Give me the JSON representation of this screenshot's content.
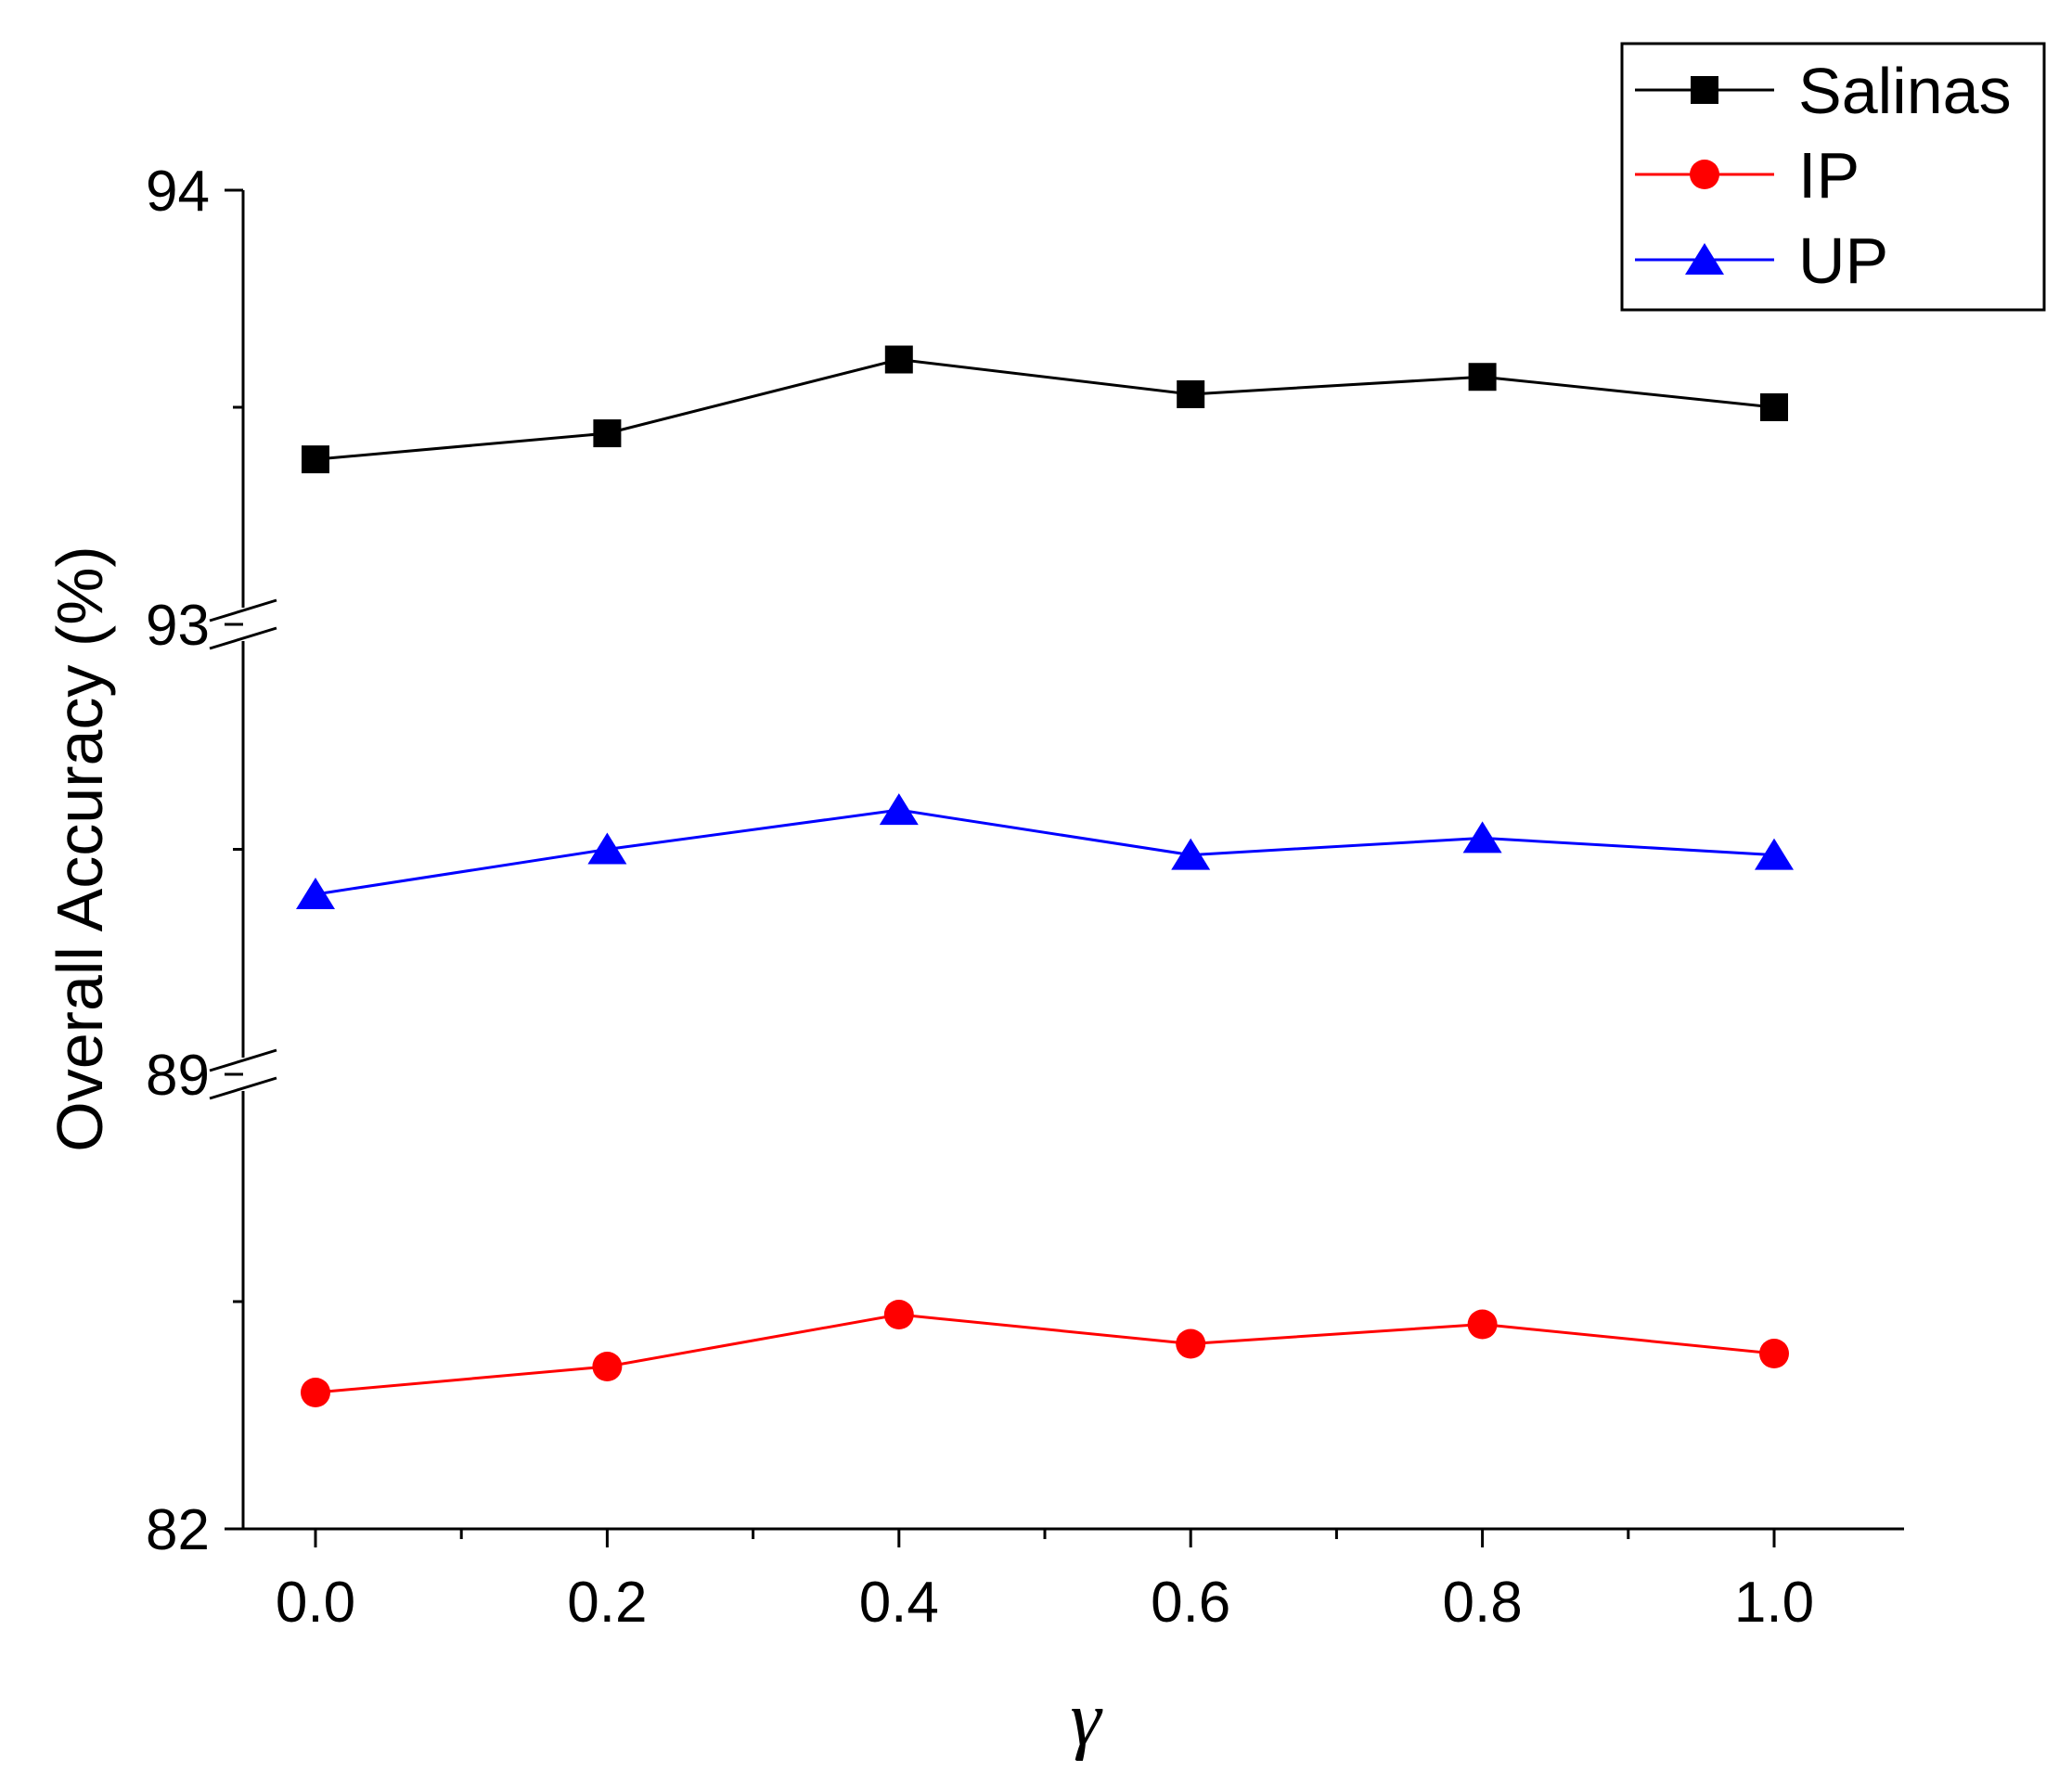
{
  "chart_data": {
    "type": "line",
    "xlabel": "γ",
    "ylabel": "Overall Accuracy (%)",
    "x": [
      0.0,
      0.2,
      0.4,
      0.6,
      0.8,
      1.0
    ],
    "x_tick_labels": [
      "0.0",
      "0.2",
      "0.4",
      "0.6",
      "0.8",
      "1.0"
    ],
    "xlim": [
      -0.05,
      1.09
    ],
    "y_axis_broken": true,
    "y_segments": [
      {
        "range": [
          82,
          89
        ],
        "tick_labels": [
          "82",
          "89"
        ]
      },
      {
        "range": [
          89,
          93
        ],
        "tick_labels": [
          "89",
          "93"
        ]
      },
      {
        "range": [
          93,
          94
        ],
        "tick_labels": [
          "93",
          "94"
        ]
      }
    ],
    "series": [
      {
        "name": "Salinas",
        "color": "#000000",
        "marker": "square",
        "values": [
          93.38,
          93.44,
          93.61,
          93.53,
          93.57,
          93.5
        ]
      },
      {
        "name": "IP",
        "color": "#ff0000",
        "marker": "circle",
        "values": [
          84.1,
          84.5,
          85.3,
          84.85,
          85.15,
          84.7
        ]
      },
      {
        "name": "UP",
        "color": "#0000ff",
        "marker": "triangle",
        "values": [
          90.6,
          91.0,
          91.35,
          90.95,
          91.1,
          90.95
        ]
      }
    ],
    "legend": {
      "position": "top-right",
      "entries": [
        "Salinas",
        "IP",
        "UP"
      ]
    }
  }
}
